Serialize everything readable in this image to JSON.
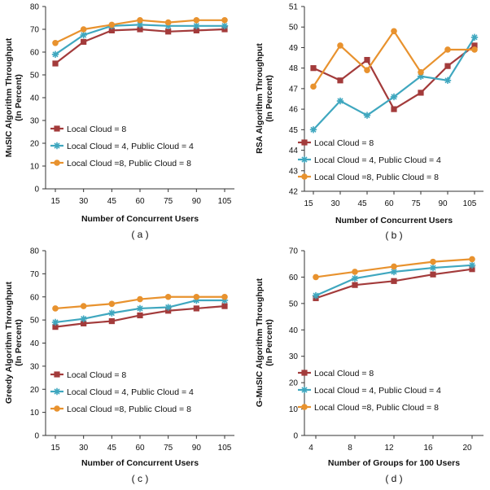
{
  "series_styles": [
    {
      "color": "#A33B3B",
      "marker": "square"
    },
    {
      "color": "#3FA7BF",
      "marker": "star"
    },
    {
      "color": "#E8922E",
      "marker": "circle"
    }
  ],
  "chart_data": [
    {
      "type": "line",
      "caption": "( a )",
      "xlabel": "Number of Concurrent Users",
      "ylabel": [
        "MuSIC Algorithm Throughput",
        "(In Percent)"
      ],
      "categories": [
        "15",
        "30",
        "45",
        "60",
        "75",
        "90",
        "105"
      ],
      "ylim": [
        0,
        80
      ],
      "yticks": [
        "0",
        "10",
        "20",
        "30",
        "40",
        "50",
        "60",
        "70",
        "80"
      ],
      "series": [
        {
          "name": "Local Cloud = 8",
          "values": [
            55,
            64.5,
            69.5,
            70,
            69,
            69.5,
            70
          ]
        },
        {
          "name": "Local Cloud = 4, Public Cloud = 4",
          "values": [
            59,
            67.5,
            71.5,
            72,
            71.5,
            71.5,
            71.5
          ]
        },
        {
          "name": "Local Cloud =8, Public Cloud = 8",
          "values": [
            64,
            70,
            72,
            74,
            73,
            74,
            74
          ]
        }
      ]
    },
    {
      "type": "line",
      "caption": "( b )",
      "xlabel": "Number of Concurrent Users",
      "ylabel": [
        "RSA  Algorithm Throughput",
        "(In Percent)"
      ],
      "categories": [
        "15",
        "30",
        "45",
        "60",
        "75",
        "90",
        "105"
      ],
      "ylim": [
        42,
        51
      ],
      "yticks": [
        "42",
        "43",
        "44",
        "45",
        "46",
        "47",
        "48",
        "49",
        "50",
        "51"
      ],
      "series": [
        {
          "name": "Local Cloud = 8",
          "values": [
            48,
            47.4,
            48.4,
            46,
            46.8,
            48.1,
            49.1
          ]
        },
        {
          "name": "Local Cloud = 4, Public Cloud = 4",
          "values": [
            45,
            46.4,
            45.7,
            46.6,
            47.6,
            47.4,
            49.5
          ]
        },
        {
          "name": "Local Cloud =8, Public Cloud = 8",
          "values": [
            47.1,
            49.1,
            47.9,
            49.8,
            47.8,
            48.9,
            48.9
          ]
        }
      ]
    },
    {
      "type": "line",
      "caption": "( c )",
      "xlabel": "Number of Concurrent Users",
      "ylabel": [
        "Greedy Algorithm Throughput",
        "(In Percent)"
      ],
      "categories": [
        "15",
        "30",
        "45",
        "60",
        "75",
        "90",
        "105"
      ],
      "ylim": [
        0,
        80
      ],
      "yticks": [
        "0",
        "10",
        "20",
        "30",
        "40",
        "50",
        "60",
        "70",
        "80"
      ],
      "series": [
        {
          "name": "Local Cloud = 8",
          "values": [
            47,
            48.5,
            49.5,
            52,
            54,
            55,
            56
          ]
        },
        {
          "name": "Local Cloud = 4, Public Cloud = 4",
          "values": [
            49,
            50.5,
            53,
            55,
            55.5,
            58.5,
            58.5
          ]
        },
        {
          "name": "Local Cloud =8, Public Cloud = 8",
          "values": [
            55,
            56,
            57,
            59,
            60,
            60,
            60
          ]
        }
      ]
    },
    {
      "type": "line",
      "caption": "( d )",
      "xlabel": "Number of Groups for 100 Users",
      "ylabel": [
        "G-MuSIC Algorithm Throughput",
        "(In Percent)"
      ],
      "categories": [
        "4",
        "8",
        "12",
        "16",
        "20"
      ],
      "ylim": [
        0,
        70
      ],
      "yticks": [
        "0",
        "10",
        "20",
        "30",
        "40",
        "50",
        "60",
        "70"
      ],
      "series": [
        {
          "name": "Local Cloud = 8",
          "values": [
            52,
            57,
            58.5,
            61,
            63
          ]
        },
        {
          "name": "Local Cloud = 4, Public Cloud = 4",
          "values": [
            53,
            59.5,
            62,
            63.5,
            64.5
          ]
        },
        {
          "name": "Local Cloud =8, Public Cloud = 8",
          "values": [
            60,
            62,
            64,
            65.8,
            66.8
          ]
        }
      ]
    }
  ]
}
